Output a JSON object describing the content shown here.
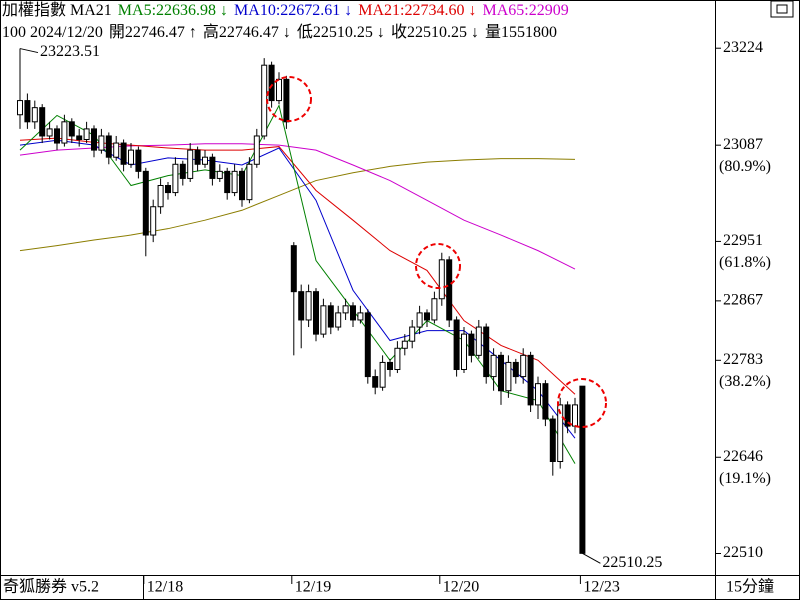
{
  "chart_data": {
    "type": "candlestick",
    "header": {
      "line1": [
        {
          "text": "加權指數 MA21",
          "color": "#000000"
        },
        {
          "text": "MA5:22636.98 ↓",
          "color": "#008000"
        },
        {
          "text": "MA10:22672.61 ↓",
          "color": "#0000cc"
        },
        {
          "text": "MA21:22734.60 ↓",
          "color": "#dd0000"
        },
        {
          "text": "MA65:22909",
          "color": "#cc00cc"
        }
      ],
      "line2": [
        "100 2024/12/20",
        "開22746.47 ↑",
        "高22746.47 ↓",
        "低22510.25 ↓",
        "收22510.25 ↓",
        "量1551800"
      ]
    },
    "footer": {
      "left": "奇狐勝券 v5.2",
      "right": "15分鐘"
    },
    "xlabels": [
      {
        "index": 17,
        "label": "12/18"
      },
      {
        "index": 37,
        "label": "12/19"
      },
      {
        "index": 57,
        "label": "12/20"
      },
      {
        "index": 76,
        "label": "12/23"
      }
    ],
    "ylim": [
      22498,
      23278
    ],
    "yticks": [
      23224,
      23087,
      22951,
      22867,
      22783,
      22646,
      22510
    ],
    "fib_labels": [
      {
        "value": 23087,
        "label": "(80.9%)"
      },
      {
        "value": 22951,
        "label": "(61.8%)"
      },
      {
        "value": 22783,
        "label": "(38.2%)"
      },
      {
        "value": 22646,
        "label": "(19.1%)"
      }
    ],
    "annotations": [
      {
        "index": 0,
        "value": 23223.51,
        "label": "23223.51"
      },
      {
        "index": 76,
        "value": 22510.25,
        "label": "22510.25"
      }
    ],
    "up_color": "#ffffff",
    "down_color": "#000000",
    "ohlc": [
      [
        23130,
        23223.51,
        23110,
        23150
      ],
      [
        23150,
        23160,
        23110,
        23120
      ],
      [
        23120,
        23150,
        23110,
        23140
      ],
      [
        23140,
        23145,
        23090,
        23100
      ],
      [
        23100,
        23120,
        23095,
        23110
      ],
      [
        23110,
        23115,
        23080,
        23090
      ],
      [
        23090,
        23130,
        23085,
        23120
      ],
      [
        23120,
        23125,
        23090,
        23100
      ],
      [
        23100,
        23110,
        23085,
        23095
      ],
      [
        23095,
        23120,
        23090,
        23110
      ],
      [
        23110,
        23115,
        23070,
        23080
      ],
      [
        23080,
        23110,
        23075,
        23100
      ],
      [
        23100,
        23105,
        23060,
        23070
      ],
      [
        23070,
        23100,
        23065,
        23090
      ],
      [
        23090,
        23095,
        23050,
        23060
      ],
      [
        23060,
        23090,
        23055,
        23080
      ],
      [
        23080,
        23085,
        23040,
        23050
      ],
      [
        23050,
        23055,
        22930,
        22960
      ],
      [
        22960,
        23010,
        22950,
        23000
      ],
      [
        23000,
        23040,
        22990,
        23030
      ],
      [
        23030,
        23035,
        23010,
        23020
      ],
      [
        23020,
        23070,
        23015,
        23060
      ],
      [
        23060,
        23065,
        23030,
        23040
      ],
      [
        23040,
        23090,
        23035,
        23080
      ],
      [
        23080,
        23085,
        23050,
        23060
      ],
      [
        23060,
        23080,
        23055,
        23070
      ],
      [
        23070,
        23075,
        23030,
        23040
      ],
      [
        23040,
        23060,
        23035,
        23050
      ],
      [
        23050,
        23055,
        23010,
        23020
      ],
      [
        23020,
        23060,
        23015,
        23050
      ],
      [
        23050,
        23055,
        23000,
        23010
      ],
      [
        23010,
        23070,
        23005,
        23060
      ],
      [
        23060,
        23110,
        23055,
        23100
      ],
      [
        23100,
        23210,
        23095,
        23200
      ],
      [
        23200,
        23205,
        23140,
        23150
      ],
      [
        23150,
        23190,
        23145,
        23180
      ],
      [
        23180,
        23185,
        23110,
        23120
      ],
      [
        22945,
        22950,
        22790,
        22880
      ],
      [
        22880,
        22890,
        22800,
        22840
      ],
      [
        22840,
        22890,
        22830,
        22880
      ],
      [
        22880,
        22885,
        22810,
        22820
      ],
      [
        22820,
        22870,
        22815,
        22860
      ],
      [
        22860,
        22865,
        22820,
        22830
      ],
      [
        22830,
        22860,
        22825,
        22850
      ],
      [
        22850,
        22870,
        22840,
        22860
      ],
      [
        22860,
        22865,
        22830,
        22840
      ],
      [
        22840,
        22860,
        22835,
        22850
      ],
      [
        22850,
        22855,
        22750,
        22760
      ],
      [
        22760,
        22770,
        22735,
        22745
      ],
      [
        22745,
        22790,
        22740,
        22780
      ],
      [
        22780,
        22785,
        22760,
        22770
      ],
      [
        22770,
        22810,
        22765,
        22800
      ],
      [
        22800,
        22820,
        22790,
        22810
      ],
      [
        22810,
        22840,
        22800,
        22830
      ],
      [
        22830,
        22860,
        22820,
        22850
      ],
      [
        22850,
        22855,
        22830,
        22840
      ],
      [
        22840,
        22880,
        22835,
        22870
      ],
      [
        22870,
        22935,
        22860,
        22925
      ],
      [
        22925,
        22930,
        22830,
        22840
      ],
      [
        22840,
        22845,
        22760,
        22770
      ],
      [
        22770,
        22830,
        22765,
        22820
      ],
      [
        22820,
        22825,
        22780,
        22790
      ],
      [
        22790,
        22840,
        22785,
        22830
      ],
      [
        22830,
        22835,
        22750,
        22760
      ],
      [
        22760,
        22800,
        22740,
        22790
      ],
      [
        22790,
        22795,
        22720,
        22740
      ],
      [
        22740,
        22790,
        22730,
        22780
      ],
      [
        22780,
        22785,
        22750,
        22760
      ],
      [
        22760,
        22800,
        22750,
        22790
      ],
      [
        22790,
        22795,
        22710,
        22720
      ],
      [
        22720,
        22760,
        22700,
        22750
      ],
      [
        22750,
        22755,
        22690,
        22700
      ],
      [
        22700,
        22705,
        22620,
        22640
      ],
      [
        22640,
        22730,
        22630,
        22720
      ],
      [
        22720,
        22725,
        22680,
        22690
      ],
      [
        22690,
        22730,
        22680,
        22720
      ],
      [
        22746.47,
        22746.47,
        22510.25,
        22510.25
      ]
    ],
    "ma_x": [
      0,
      5,
      10,
      15,
      20,
      25,
      30,
      35,
      40,
      45,
      50,
      55,
      60,
      65,
      70,
      75
    ],
    "series": [
      {
        "name": "MA5",
        "color": "#008000",
        "values": [
          23080,
          23129,
          23101,
          23030,
          23044,
          23052,
          23044,
          23143,
          22924,
          22854,
          22783,
          22839,
          22811,
          22740,
          22726,
          22637
        ]
      },
      {
        "name": "MA10",
        "color": "#0000cc",
        "values": [
          23087,
          23094,
          23087,
          23059,
          23069,
          23066,
          23059,
          23083,
          23009,
          22882,
          22811,
          22825,
          22825,
          22783,
          22740,
          22673
        ]
      },
      {
        "name": "MA21",
        "color": "#dd0000",
        "values": [
          23094,
          23097,
          23091,
          23087,
          23083,
          23080,
          23080,
          23085,
          23023,
          22981,
          22938,
          22910,
          22839,
          22804,
          22783,
          22735
        ]
      },
      {
        "name": "MA65",
        "color": "#cc00cc",
        "values": [
          23073,
          23080,
          23083,
          23086,
          23087,
          23089,
          23089,
          23087,
          23080,
          23059,
          23037,
          23009,
          22981,
          22960,
          22938,
          22912
        ]
      }
    ],
    "ma_extra": {
      "color": "#8b7d00",
      "values": [
        22938,
        22945,
        22953,
        22960,
        22969,
        22981,
        22995,
        23016,
        23037,
        23048,
        23057,
        23063,
        23066,
        23068,
        23068,
        23067
      ]
    }
  }
}
